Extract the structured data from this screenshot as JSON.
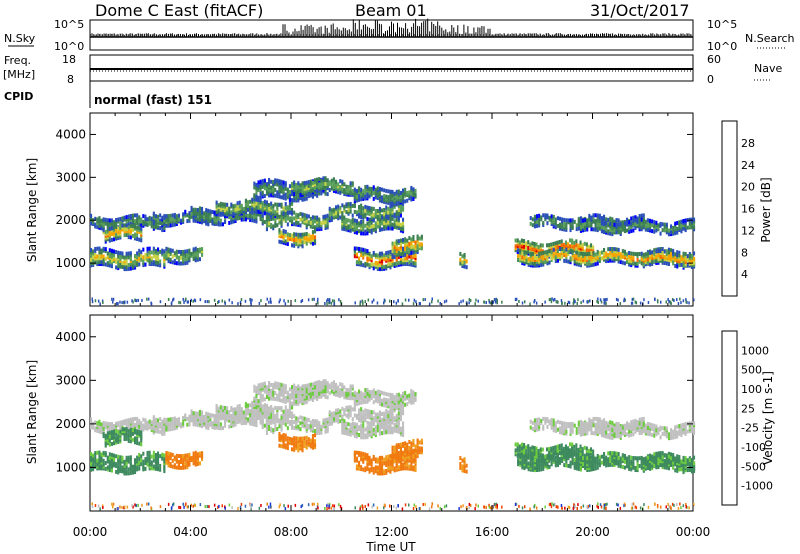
{
  "header": {
    "title": "Dome C East (fitACF)",
    "beam": "Beam 01",
    "date": "31/Oct/2017"
  },
  "nsky_panel": {
    "left_label": "N.Sky",
    "right_label": "N.Search",
    "tick_top": "10^5",
    "tick_bottom": "10^0",
    "right_tick_top": "10^5",
    "right_tick_bottom": "10^0"
  },
  "freq_panel": {
    "left_label_line1": "Freq.",
    "left_label_line2": "[MHz]",
    "right_label": "Nave",
    "left_ticks": [
      "18",
      "8"
    ],
    "right_ticks": [
      "60",
      "0"
    ]
  },
  "cpid_panel": {
    "label": "CPID",
    "program": "normal (fast) 151"
  },
  "chart_data": [
    {
      "type": "heatmap",
      "name": "Power",
      "ylabel": "Slant Range [km]",
      "ylim": [
        0,
        4500
      ],
      "yticks": [
        1000,
        2000,
        3000,
        4000
      ],
      "colorbar_label": "Power [dB]",
      "colorbar_ticks": [
        "28",
        "24",
        "20",
        "16",
        "12",
        "8",
        "4"
      ],
      "colors": [
        "#0000ff",
        "#2a4fb8",
        "#3c7f52",
        "#5aa05a",
        "#c8d244",
        "#f5a500",
        "#f06a00",
        "#e00000"
      ]
    },
    {
      "type": "heatmap",
      "name": "Velocity",
      "ylabel": "Slant Range [km]",
      "ylim": [
        0,
        4500
      ],
      "yticks": [
        1000,
        2000,
        3000,
        4000
      ],
      "colorbar_label": "Velocity [m s-1]",
      "colorbar_ticks": [
        "1000",
        "500",
        "100",
        "25",
        "-25",
        "-100",
        "-500",
        "-1000"
      ],
      "colors": [
        "#1d35d6",
        "#2c64b5",
        "#3e8a5f",
        "#6ccc3e",
        "#c0c0c0",
        "#f0a020",
        "#f07a10",
        "#f04000",
        "#e00000"
      ]
    }
  ],
  "x_axis": {
    "xlabel": "Time UT",
    "ticks": [
      "00:00",
      "04:00",
      "08:00",
      "12:00",
      "16:00",
      "20:00",
      "00:00"
    ]
  }
}
